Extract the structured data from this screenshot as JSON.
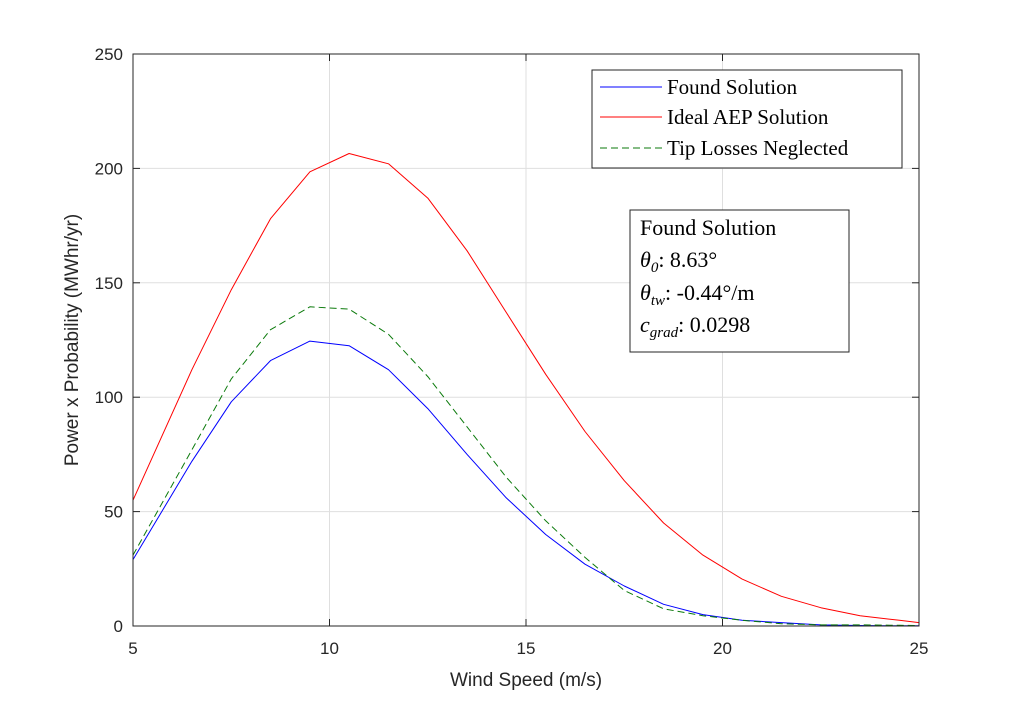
{
  "chart_data": {
    "type": "line",
    "xlabel": "Wind Speed (m/s)",
    "ylabel": "Power x Probability (MWhr/yr)",
    "xlim": [
      5,
      25
    ],
    "ylim": [
      0,
      250
    ],
    "xticks": [
      "5",
      "10",
      "15",
      "20",
      "25"
    ],
    "yticks": [
      "0",
      "50",
      "100",
      "150",
      "200",
      "250"
    ],
    "grid": true,
    "legend_position": "top-right",
    "series": [
      {
        "name": "Found Solution",
        "color": "#0000ff",
        "dash": "solid",
        "x": [
          5,
          6.5,
          7.5,
          8.5,
          9.5,
          10.5,
          11.5,
          12.5,
          13.5,
          14.5,
          15.5,
          16.5,
          17.5,
          18.5,
          19.5,
          20.5,
          21.5,
          22.5,
          23.5,
          24.5,
          25
        ],
        "y": [
          29,
          72,
          98,
          116,
          124.5,
          122.5,
          112,
          95,
          75,
          56,
          40,
          27,
          17.5,
          9.5,
          5,
          2.5,
          1.5,
          0.5,
          0.2,
          0.1,
          0.1
        ]
      },
      {
        "name": "Ideal AEP Solution",
        "color": "#ff0000",
        "dash": "solid",
        "x": [
          5,
          6.5,
          7.5,
          8.5,
          9.5,
          10.5,
          11.5,
          12.5,
          13.5,
          14.5,
          15.5,
          16.5,
          17.5,
          18.5,
          19.5,
          20.5,
          21.5,
          22.5,
          23.5,
          24.5,
          25
        ],
        "y": [
          55,
          112,
          147,
          178,
          198.5,
          206.5,
          202,
          187,
          164,
          137,
          110,
          85,
          63.5,
          45,
          31,
          20.5,
          13,
          8,
          4.5,
          2.5,
          1.5
        ]
      },
      {
        "name": "Tip Losses Neglected",
        "color": "#0b7a0b",
        "dash": "dashed",
        "x": [
          5,
          6.5,
          7.5,
          8.5,
          9.5,
          10.5,
          11.5,
          12.5,
          13.5,
          14.5,
          15.5,
          16.5,
          17.5,
          18.5,
          19.5,
          20.5,
          21.5,
          22.5,
          23.5,
          24.5,
          25
        ],
        "y": [
          31,
          77,
          108,
          129.5,
          139.5,
          138.5,
          127.5,
          109,
          87,
          65,
          46,
          30,
          15.5,
          7.5,
          4.5,
          2.5,
          1,
          0.5,
          0.5,
          0.3,
          0.2
        ]
      }
    ],
    "annotation": {
      "title": "Found Solution",
      "theta0_label": "θ",
      "theta0_sub": "0",
      "theta0_value": ": 8.63°",
      "thetatw_label": "θ",
      "thetatw_sub": "tw",
      "thetatw_value": ": -0.44°/m",
      "cgrad_label": "c",
      "cgrad_sub": "grad",
      "cgrad_value": ": 0.0298"
    }
  }
}
